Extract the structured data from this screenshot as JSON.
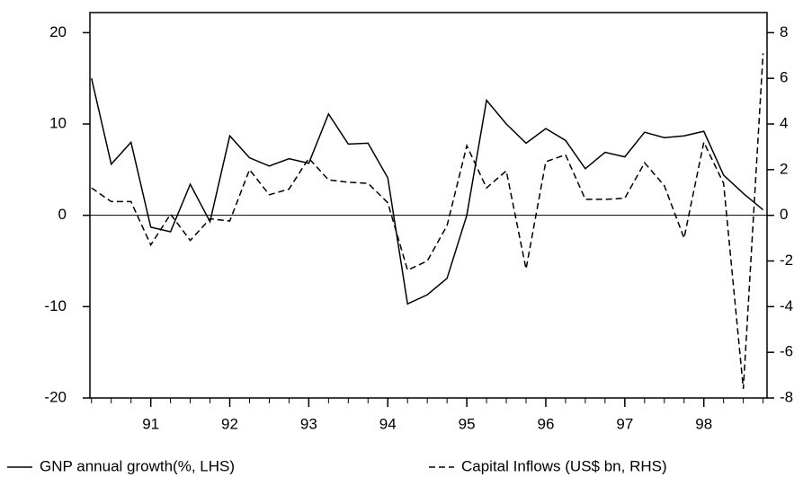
{
  "chart_data": {
    "type": "line",
    "x": [
      90.25,
      90.5,
      90.75,
      91,
      91.25,
      91.5,
      91.75,
      92,
      92.25,
      92.5,
      92.75,
      93,
      93.25,
      93.5,
      93.75,
      94,
      94.25,
      94.5,
      94.75,
      95,
      95.25,
      95.5,
      95.75,
      96,
      96.25,
      96.5,
      96.75,
      97,
      97.25,
      97.5,
      97.75,
      98,
      98.25,
      98.5,
      98.75
    ],
    "series": [
      {
        "name": "GNP annual growth(%, LHS)",
        "color": "#000000",
        "dash": "solid",
        "axis": "y",
        "values": [
          15,
          5.6,
          8,
          -1.3,
          -1.8,
          3.4,
          -0.7,
          8.7,
          6.3,
          5.4,
          6.2,
          5.7,
          11.1,
          7.8,
          7.9,
          4.1,
          -9.7,
          -8.7,
          -6.9,
          0,
          12.6,
          10,
          7.9,
          9.5,
          8.2,
          5.1,
          6.9,
          6.4,
          9.1,
          8.5,
          8.7,
          9.2,
          4.4,
          2.4,
          0.6
        ]
      },
      {
        "name": "Capital Inflows (US$ bn, RHS)",
        "color": "#000000",
        "dash": "dashed",
        "axis": "y2",
        "values": [
          1.2,
          0.6,
          0.6,
          -1.3,
          0.05,
          -1.1,
          -0.15,
          -0.25,
          2.0,
          0.9,
          1.15,
          2.5,
          1.55,
          1.45,
          1.4,
          0.55,
          -2.4,
          -2.0,
          -0.45,
          3.05,
          1.2,
          1.95,
          -2.35,
          2.35,
          2.65,
          0.7,
          0.7,
          0.75,
          2.3,
          1.3,
          -1.0,
          3.2,
          1.4,
          -7.6,
          7.1
        ]
      }
    ],
    "xlim": [
      90.23,
      98.8
    ],
    "xticks": [
      91,
      92,
      93,
      94,
      95,
      96,
      97,
      98
    ],
    "ylim": [
      -20,
      22.2
    ],
    "yticks": [
      -20,
      -10,
      0,
      10,
      20
    ],
    "y2lim": [
      -8,
      8.88
    ],
    "y2ticks": [
      -8,
      -6,
      -4,
      -2,
      0,
      2,
      4,
      6,
      8
    ],
    "legend": "bottom"
  }
}
